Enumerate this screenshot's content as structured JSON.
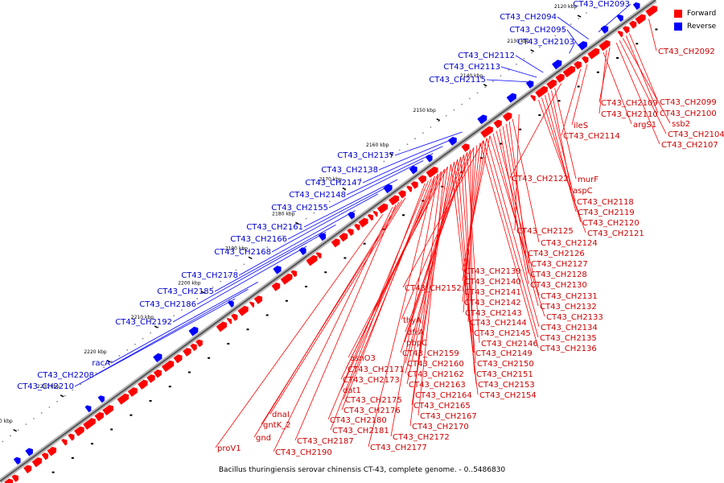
{
  "legend": {
    "forward_label": "Forward",
    "reverse_label": "Reverse",
    "forward_color": "#ff0000",
    "reverse_color": "#0000ff"
  },
  "caption": "Bacillus thuringiensis serovar chinensis CT-43, complete genome. - 0..5486830",
  "ticks": [
    "2110 kbp",
    "2120 kbp",
    "2130 kbp",
    "2140 kbp",
    "2150 kbp",
    "2160 kbp",
    "2170 kbp",
    "2180 kbp",
    "2190 kbp",
    "2200 kbp",
    "2210 kbp",
    "2220 kbp",
    "2230 kbp",
    "2240 kbp"
  ],
  "reverse_labels": [
    "CT43_CH2093",
    "CT43_CH2094",
    "CT43_CH2095",
    "CT43_CH2103",
    "CT43_CH2112",
    "CT43_CH2113",
    "CT43_CH2115",
    "CT43_CH2137",
    "CT43_CH2138",
    "CT43_CH2147",
    "CT43_CH2148",
    "CT43_CH2155",
    "CT43_CH2161",
    "CT43_CH2166",
    "CT43_CH2168",
    "CT43_CH2178",
    "CT43_CH2185",
    "CT43_CH2186",
    "CT43_CH2192",
    "racA",
    "CT43_CH2208",
    "CT43_CH2210"
  ],
  "forward_labels": [
    "CT43_CH2092",
    "CT43_CH2099",
    "CT43_CH2109",
    "CT43_CH2100",
    "CT43_CH2110",
    "ssb2",
    "argS1",
    "CT43_CH2104",
    "ileS",
    "CT43_CH2114",
    "CT43_CH2107",
    "murF",
    "CT43_CH2122",
    "aspC",
    "CT43_CH2118",
    "CT43_CH2119",
    "CT43_CH2120",
    "CT43_CH2121",
    "CT43_CH2125",
    "CT43_CH2124",
    "CT43_CH2126",
    "CT43_CH2127",
    "CT43_CH2139",
    "CT43_CH2128",
    "CT43_CH2140",
    "CT43_CH2130",
    "CT43_CH2152",
    "CT43_CH2141",
    "CT43_CH2131",
    "CT43_CH2142",
    "CT43_CH2132",
    "CT43_CH2143",
    "CT43_CH2133",
    "thyA",
    "CT43_CH2144",
    "CT43_CH2134",
    "dfrA",
    "CT43_CH2145",
    "CT43_CH2135",
    "pbpC",
    "CT43_CH2146",
    "CT43_CH2136",
    "asnO3",
    "CT43_CH2159",
    "CT43_CH2149",
    "CT43_CH2171",
    "CT43_CH2160",
    "CT43_CH2150",
    "CT43_CH2173",
    "CT43_CH2162",
    "CT43_CH2151",
    "dat1",
    "CT43_CH2163",
    "CT43_CH2153",
    "CT43_CH2175",
    "CT43_CH2164",
    "CT43_CH2154",
    "CT43_CH2176",
    "CT43_CH2165",
    "dnaI",
    "CT43_CH2180",
    "CT43_CH2167",
    "gntK_2",
    "CT43_CH2181",
    "CT43_CH2170",
    "gnd",
    "CT43_CH2172",
    "CT43_CH2187",
    "CT43_CH2177",
    "proV1",
    "CT43_CH2190"
  ]
}
